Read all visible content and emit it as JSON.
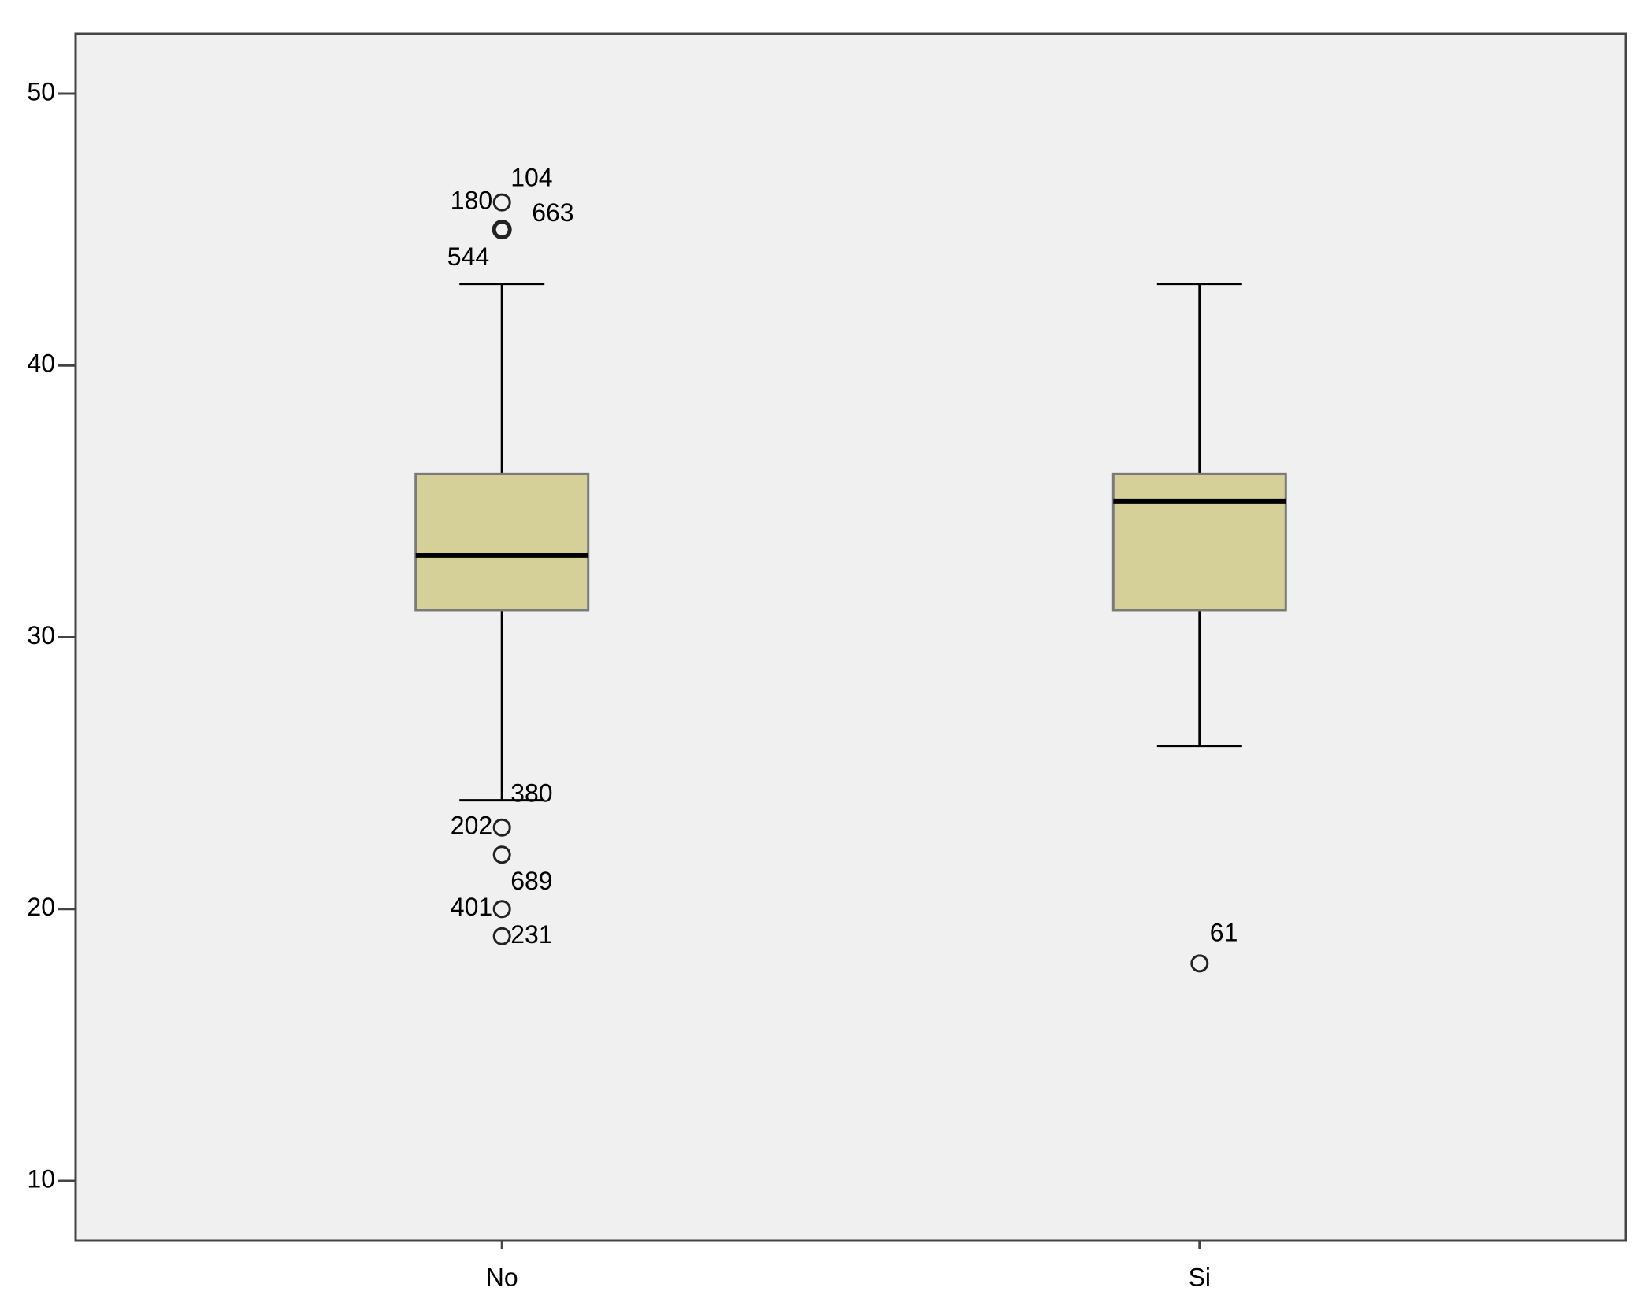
{
  "chart_data": {
    "type": "box",
    "categories": [
      "No",
      "Si"
    ],
    "ylim": [
      7.8,
      52.2
    ],
    "yticks": [
      10,
      20,
      30,
      40,
      50
    ],
    "color": "#d5cf98",
    "boxes": [
      {
        "whisker_low": 24,
        "q1": 31,
        "median": 33,
        "q3": 36,
        "whisker_high": 43,
        "outliers": [
          {
            "value": 46,
            "labels": [
              "180",
              "104"
            ]
          },
          {
            "value": 45,
            "labels": [
              "663",
              "544"
            ]
          },
          {
            "value": 23,
            "labels": [
              "202",
              "380"
            ]
          },
          {
            "value": 22,
            "labels": [
              "689"
            ]
          },
          {
            "value": 20,
            "labels": [
              "401"
            ]
          },
          {
            "value": 19,
            "labels": [
              "231"
            ]
          }
        ]
      },
      {
        "whisker_low": 26,
        "q1": 31,
        "median": 35,
        "q3": 36,
        "whisker_high": 43,
        "outliers": [
          {
            "value": 18,
            "labels": [
              "61"
            ]
          }
        ]
      }
    ]
  }
}
